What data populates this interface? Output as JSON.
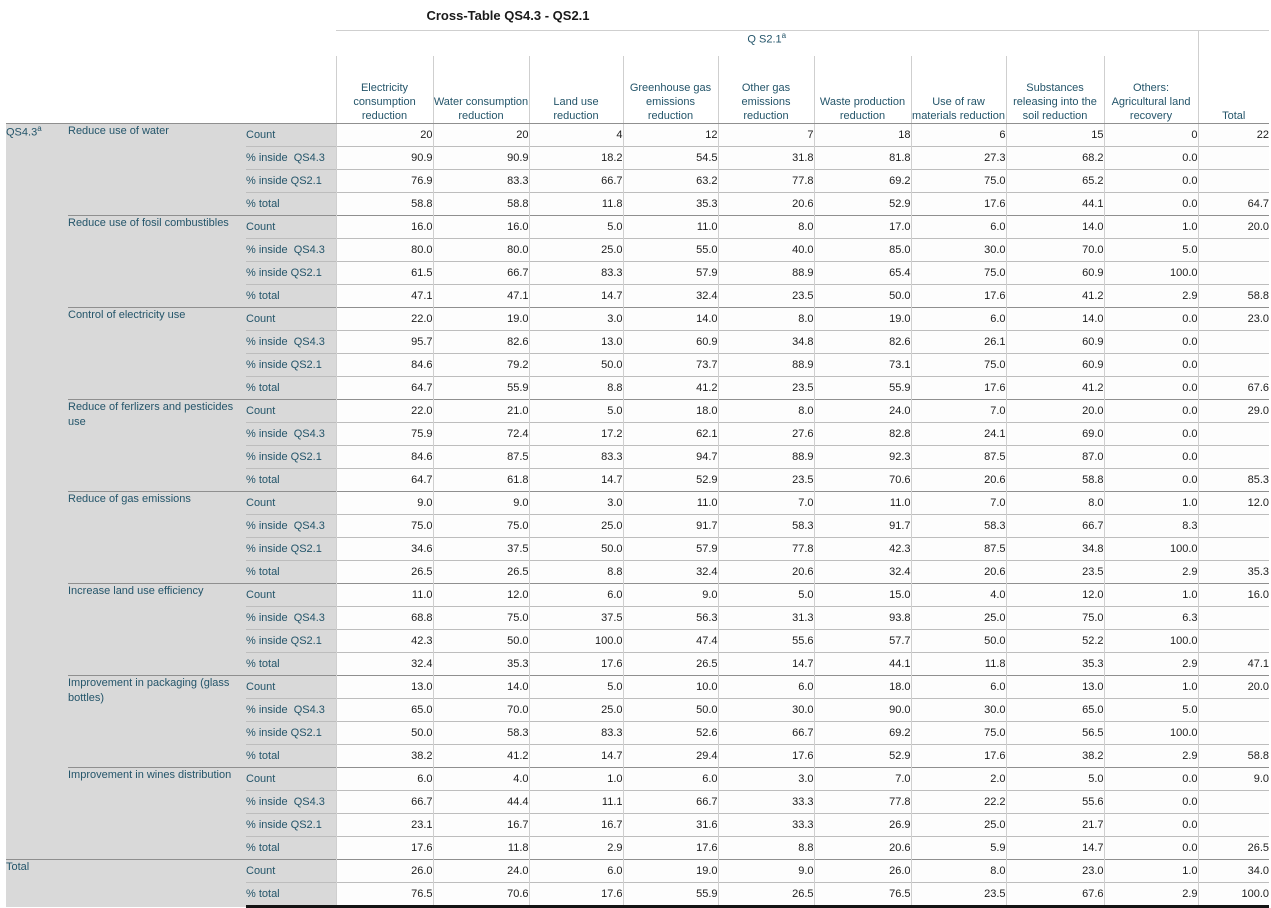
{
  "title": "Cross-Table QS4.3 - QS2.1",
  "colors": {
    "stub_background": "#d9d9d9",
    "cell_background": "#fdfdfd",
    "label_text": "#24556a",
    "value_text": "#1d1d1d",
    "light_line": "#cfcfcf",
    "group_line": "#8f8f8f",
    "bottom_frame": "#141414"
  },
  "chart_data": {
    "type": "table",
    "title": "Cross-Table QS4.3 - QS2.1",
    "column_spanner": "Q S2.1",
    "column_spanner_sup": "a",
    "row_dimension": "QS4.3",
    "row_dimension_sup": "a",
    "columns": [
      "Electricity consumption reduction",
      "Water consumption reduction",
      "Land use reduction",
      "Greenhouse gas emissions reduction",
      "Other gas emissions reduction",
      "Waste production reduction",
      "Use of raw materials reduction",
      "Substances releasing into the soil reduction",
      "Others: Agricultural land recovery",
      "Total"
    ],
    "groups": [
      {
        "label": "Reduce use of water",
        "rows": [
          {
            "label": "Count",
            "values": [
              "20",
              "20",
              "4",
              "12",
              "7",
              "18",
              "6",
              "15",
              "0",
              "22"
            ]
          },
          {
            "label": "% inside  QS4.3",
            "values": [
              "90.9",
              "90.9",
              "18.2",
              "54.5",
              "31.8",
              "81.8",
              "27.3",
              "68.2",
              "0.0",
              ""
            ]
          },
          {
            "label": "% inside QS2.1",
            "values": [
              "76.9",
              "83.3",
              "66.7",
              "63.2",
              "77.8",
              "69.2",
              "75.0",
              "65.2",
              "0.0",
              ""
            ]
          },
          {
            "label": "% total",
            "values": [
              "58.8",
              "58.8",
              "11.8",
              "35.3",
              "20.6",
              "52.9",
              "17.6",
              "44.1",
              "0.0",
              "64.7"
            ]
          }
        ]
      },
      {
        "label": "Reduce use of fosil combustibles",
        "rows": [
          {
            "label": "Count",
            "values": [
              "16.0",
              "16.0",
              "5.0",
              "11.0",
              "8.0",
              "17.0",
              "6.0",
              "14.0",
              "1.0",
              "20.0"
            ]
          },
          {
            "label": "% inside  QS4.3",
            "values": [
              "80.0",
              "80.0",
              "25.0",
              "55.0",
              "40.0",
              "85.0",
              "30.0",
              "70.0",
              "5.0",
              ""
            ]
          },
          {
            "label": "% inside QS2.1",
            "values": [
              "61.5",
              "66.7",
              "83.3",
              "57.9",
              "88.9",
              "65.4",
              "75.0",
              "60.9",
              "100.0",
              ""
            ]
          },
          {
            "label": "% total",
            "values": [
              "47.1",
              "47.1",
              "14.7",
              "32.4",
              "23.5",
              "50.0",
              "17.6",
              "41.2",
              "2.9",
              "58.8"
            ]
          }
        ]
      },
      {
        "label": "Control of electricity use",
        "rows": [
          {
            "label": "Count",
            "values": [
              "22.0",
              "19.0",
              "3.0",
              "14.0",
              "8.0",
              "19.0",
              "6.0",
              "14.0",
              "0.0",
              "23.0"
            ]
          },
          {
            "label": "% inside  QS4.3",
            "values": [
              "95.7",
              "82.6",
              "13.0",
              "60.9",
              "34.8",
              "82.6",
              "26.1",
              "60.9",
              "0.0",
              ""
            ]
          },
          {
            "label": "% inside QS2.1",
            "values": [
              "84.6",
              "79.2",
              "50.0",
              "73.7",
              "88.9",
              "73.1",
              "75.0",
              "60.9",
              "0.0",
              ""
            ]
          },
          {
            "label": "% total",
            "values": [
              "64.7",
              "55.9",
              "8.8",
              "41.2",
              "23.5",
              "55.9",
              "17.6",
              "41.2",
              "0.0",
              "67.6"
            ]
          }
        ]
      },
      {
        "label": "Reduce of ferlizers and pesticides use",
        "rows": [
          {
            "label": "Count",
            "values": [
              "22.0",
              "21.0",
              "5.0",
              "18.0",
              "8.0",
              "24.0",
              "7.0",
              "20.0",
              "0.0",
              "29.0"
            ]
          },
          {
            "label": "% inside  QS4.3",
            "values": [
              "75.9",
              "72.4",
              "17.2",
              "62.1",
              "27.6",
              "82.8",
              "24.1",
              "69.0",
              "0.0",
              ""
            ]
          },
          {
            "label": "% inside QS2.1",
            "values": [
              "84.6",
              "87.5",
              "83.3",
              "94.7",
              "88.9",
              "92.3",
              "87.5",
              "87.0",
              "0.0",
              ""
            ]
          },
          {
            "label": "% total",
            "values": [
              "64.7",
              "61.8",
              "14.7",
              "52.9",
              "23.5",
              "70.6",
              "20.6",
              "58.8",
              "0.0",
              "85.3"
            ]
          }
        ]
      },
      {
        "label": "Reduce of gas emissions",
        "rows": [
          {
            "label": "Count",
            "values": [
              "9.0",
              "9.0",
              "3.0",
              "11.0",
              "7.0",
              "11.0",
              "7.0",
              "8.0",
              "1.0",
              "12.0"
            ]
          },
          {
            "label": "% inside  QS4.3",
            "values": [
              "75.0",
              "75.0",
              "25.0",
              "91.7",
              "58.3",
              "91.7",
              "58.3",
              "66.7",
              "8.3",
              ""
            ]
          },
          {
            "label": "% inside QS2.1",
            "values": [
              "34.6",
              "37.5",
              "50.0",
              "57.9",
              "77.8",
              "42.3",
              "87.5",
              "34.8",
              "100.0",
              ""
            ]
          },
          {
            "label": "% total",
            "values": [
              "26.5",
              "26.5",
              "8.8",
              "32.4",
              "20.6",
              "32.4",
              "20.6",
              "23.5",
              "2.9",
              "35.3"
            ]
          }
        ]
      },
      {
        "label": "Increase land use efficiency",
        "rows": [
          {
            "label": "Count",
            "values": [
              "11.0",
              "12.0",
              "6.0",
              "9.0",
              "5.0",
              "15.0",
              "4.0",
              "12.0",
              "1.0",
              "16.0"
            ]
          },
          {
            "label": "% inside  QS4.3",
            "values": [
              "68.8",
              "75.0",
              "37.5",
              "56.3",
              "31.3",
              "93.8",
              "25.0",
              "75.0",
              "6.3",
              ""
            ]
          },
          {
            "label": "% inside QS2.1",
            "values": [
              "42.3",
              "50.0",
              "100.0",
              "47.4",
              "55.6",
              "57.7",
              "50.0",
              "52.2",
              "100.0",
              ""
            ]
          },
          {
            "label": "% total",
            "values": [
              "32.4",
              "35.3",
              "17.6",
              "26.5",
              "14.7",
              "44.1",
              "11.8",
              "35.3",
              "2.9",
              "47.1"
            ]
          }
        ]
      },
      {
        "label": "Improvement in packaging (glass bottles)",
        "rows": [
          {
            "label": "Count",
            "values": [
              "13.0",
              "14.0",
              "5.0",
              "10.0",
              "6.0",
              "18.0",
              "6.0",
              "13.0",
              "1.0",
              "20.0"
            ]
          },
          {
            "label": "% inside  QS4.3",
            "values": [
              "65.0",
              "70.0",
              "25.0",
              "50.0",
              "30.0",
              "90.0",
              "30.0",
              "65.0",
              "5.0",
              ""
            ]
          },
          {
            "label": "% inside QS2.1",
            "values": [
              "50.0",
              "58.3",
              "83.3",
              "52.6",
              "66.7",
              "69.2",
              "75.0",
              "56.5",
              "100.0",
              ""
            ]
          },
          {
            "label": "% total",
            "values": [
              "38.2",
              "41.2",
              "14.7",
              "29.4",
              "17.6",
              "52.9",
              "17.6",
              "38.2",
              "2.9",
              "58.8"
            ]
          }
        ]
      },
      {
        "label": "Improvement in wines distribution",
        "rows": [
          {
            "label": "Count",
            "values": [
              "6.0",
              "4.0",
              "1.0",
              "6.0",
              "3.0",
              "7.0",
              "2.0",
              "5.0",
              "0.0",
              "9.0"
            ]
          },
          {
            "label": "% inside  QS4.3",
            "values": [
              "66.7",
              "44.4",
              "11.1",
              "66.7",
              "33.3",
              "77.8",
              "22.2",
              "55.6",
              "0.0",
              ""
            ]
          },
          {
            "label": "% inside QS2.1",
            "values": [
              "23.1",
              "16.7",
              "16.7",
              "31.6",
              "33.3",
              "26.9",
              "25.0",
              "21.7",
              "0.0",
              ""
            ]
          },
          {
            "label": "% total",
            "values": [
              "17.6",
              "11.8",
              "2.9",
              "17.6",
              "8.8",
              "20.6",
              "5.9",
              "14.7",
              "0.0",
              "26.5"
            ]
          }
        ]
      }
    ],
    "total": {
      "label": "Total",
      "rows": [
        {
          "label": "Count",
          "values": [
            "26.0",
            "24.0",
            "6.0",
            "19.0",
            "9.0",
            "26.0",
            "8.0",
            "23.0",
            "1.0",
            "34.0"
          ]
        },
        {
          "label": "% total",
          "values": [
            "76.5",
            "70.6",
            "17.6",
            "55.9",
            "26.5",
            "76.5",
            "23.5",
            "67.6",
            "2.9",
            "100.0"
          ]
        }
      ]
    }
  }
}
